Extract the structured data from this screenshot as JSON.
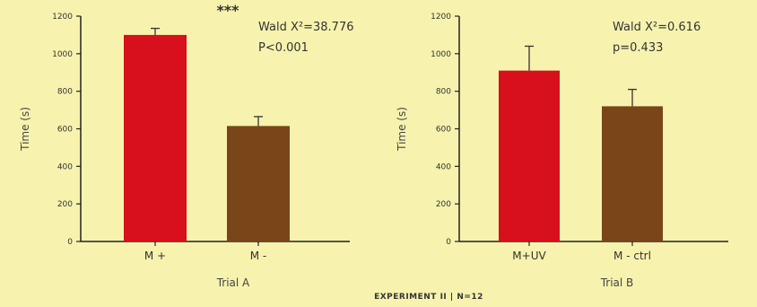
{
  "chart_data": [
    {
      "type": "bar",
      "categories": [
        "M +",
        "M -"
      ],
      "values": [
        1100,
        615
      ],
      "errors": [
        35,
        50
      ],
      "colors": [
        "#d80f1c",
        "#7a4519"
      ],
      "title": "",
      "xlabel": "Trial A",
      "ylabel": "Time (s)",
      "ylim": [
        0,
        1200
      ],
      "yticks": [
        0,
        200,
        400,
        600,
        800,
        1000,
        1200
      ],
      "annotations": [
        "Wald X²=38.776",
        "P<0.001"
      ],
      "significance": "***"
    },
    {
      "type": "bar",
      "categories": [
        "M+UV",
        "M - ctrl"
      ],
      "values": [
        910,
        720
      ],
      "errors": [
        130,
        90
      ],
      "colors": [
        "#d80f1c",
        "#7a4519"
      ],
      "title": "",
      "xlabel": "Trial B",
      "ylabel": "Time (s)",
      "ylim": [
        0,
        1200
      ],
      "yticks": [
        0,
        200,
        400,
        600,
        800,
        1000,
        1200
      ],
      "annotations": [
        "Wald X²=0.616",
        "p=0.433"
      ],
      "significance": ""
    }
  ],
  "footer": "EXPERIMENT II | N=12",
  "background": "#f7f3ae"
}
